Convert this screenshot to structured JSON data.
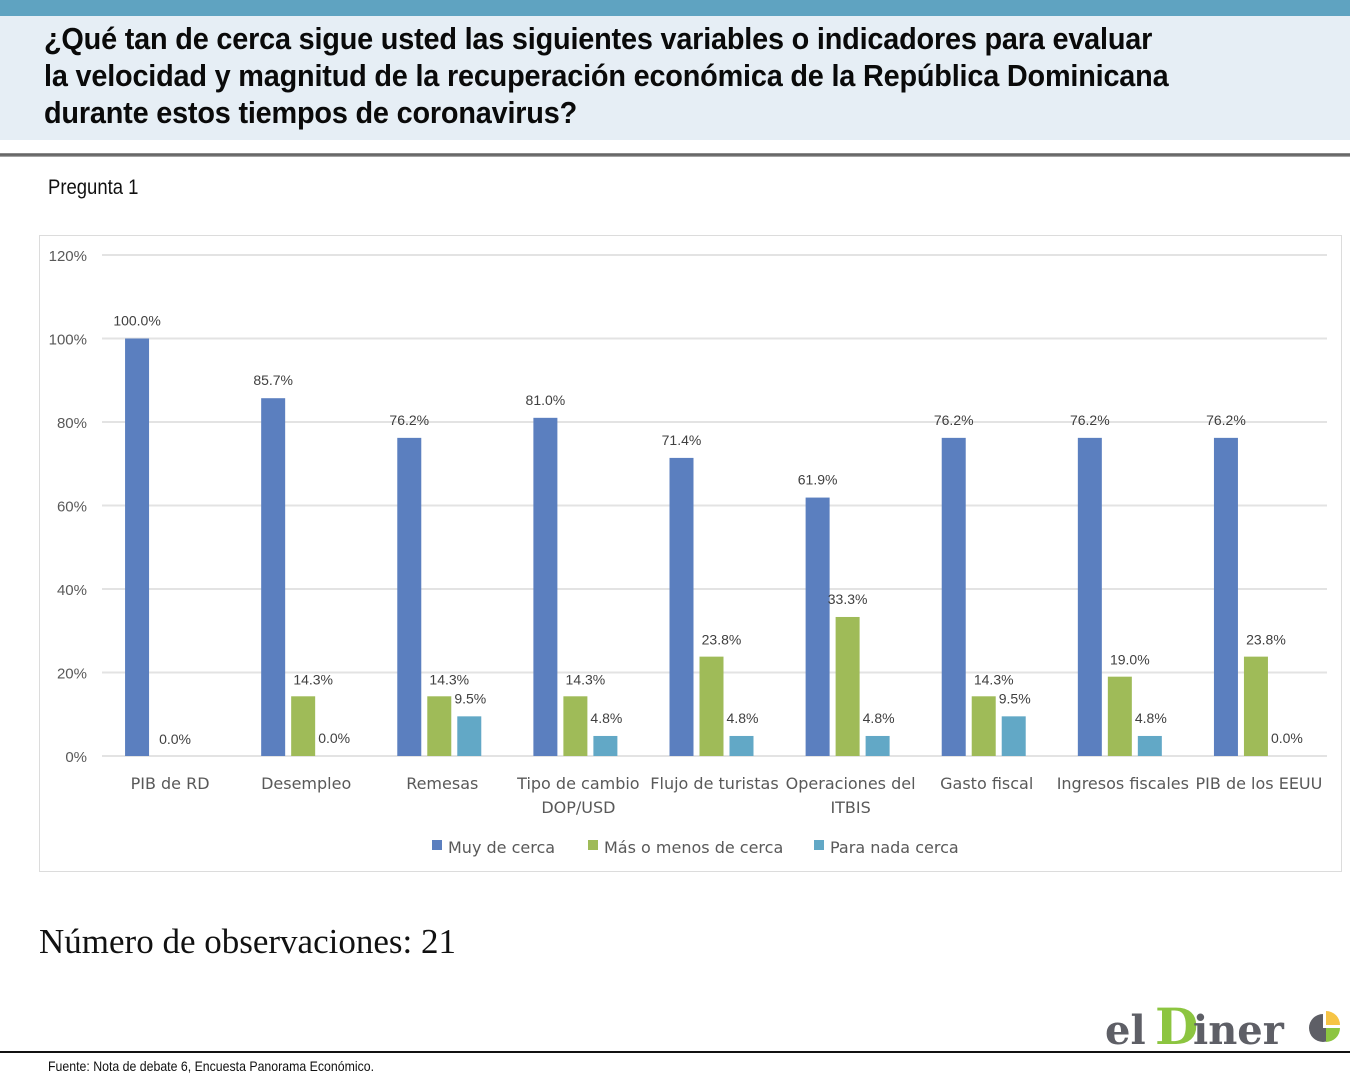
{
  "header": {
    "title": "¿Qué tan de cerca sigue usted las siguientes variables o indicadores para evaluar la velocidad y magnitud de la recuperación económica de la República Dominicana durante estos tiempos de coronavirus?",
    "title_lines": [
      "¿Qué tan de cerca sigue usted las siguientes variables o indicadores para evaluar",
      "la velocidad y magnitud de la recuperación económica de la República Dominicana",
      "durante estos tiempos de coronavirus?"
    ],
    "question_label": "Pregunta 1"
  },
  "colors": {
    "header_strip": "#5fa3c1",
    "header_bg": "#e6eef5",
    "series": [
      "#5b7fbf",
      "#9fbb58",
      "#62a8c6"
    ]
  },
  "chart_data": {
    "type": "bar",
    "title": "",
    "xlabel": "",
    "ylabel": "",
    "ylim": [
      0,
      120
    ],
    "yticks": [
      0,
      20,
      40,
      60,
      80,
      100,
      120
    ],
    "ytick_labels": [
      "0%",
      "20%",
      "40%",
      "60%",
      "80%",
      "100%",
      "120%"
    ],
    "grid": true,
    "legend_position": "bottom",
    "categories": [
      [
        "PIB de RD"
      ],
      [
        "Desempleo"
      ],
      [
        "Remesas"
      ],
      [
        "Tipo de cambio",
        "DOP/USD"
      ],
      [
        "Flujo de turistas"
      ],
      [
        "Operaciones del",
        "ITBIS"
      ],
      [
        "Gasto fiscal"
      ],
      [
        "Ingresos fiscales"
      ],
      [
        "PIB de los EEUU"
      ]
    ],
    "series": [
      {
        "name": "Muy de cerca",
        "values": [
          100.0,
          85.7,
          76.2,
          81.0,
          71.4,
          61.9,
          76.2,
          76.2,
          76.2
        ],
        "labels": [
          "100.0%",
          "85.7%",
          "76.2%",
          "81.0%",
          "71.4%",
          "61.9%",
          "76.2%",
          "76.2%",
          "76.2%"
        ]
      },
      {
        "name": "Más o menos de cerca",
        "values": [
          0.0,
          14.3,
          14.3,
          14.3,
          23.8,
          33.3,
          14.3,
          19.0,
          23.8
        ],
        "labels": [
          "0.0%",
          "14.3%",
          "14.3%",
          "14.3%",
          "23.8%",
          "33.3%",
          "14.3%",
          "19.0%",
          "23.8%"
        ]
      },
      {
        "name": "Para nada cerca",
        "values": [
          null,
          0.0,
          9.5,
          4.8,
          4.8,
          4.8,
          9.5,
          4.8,
          0.0
        ],
        "labels": [
          null,
          "0.0%",
          "9.5%",
          "4.8%",
          "4.8%",
          "4.8%",
          "9.5%",
          "4.8%",
          "0.0%"
        ]
      }
    ]
  },
  "observations": "Número de observaciones: 21",
  "logo": {
    "text_el": "el",
    "text_d": "D",
    "text_iner": "iner"
  },
  "source": "Fuente: Nota de debate 6, Encuesta Panorama Económico."
}
